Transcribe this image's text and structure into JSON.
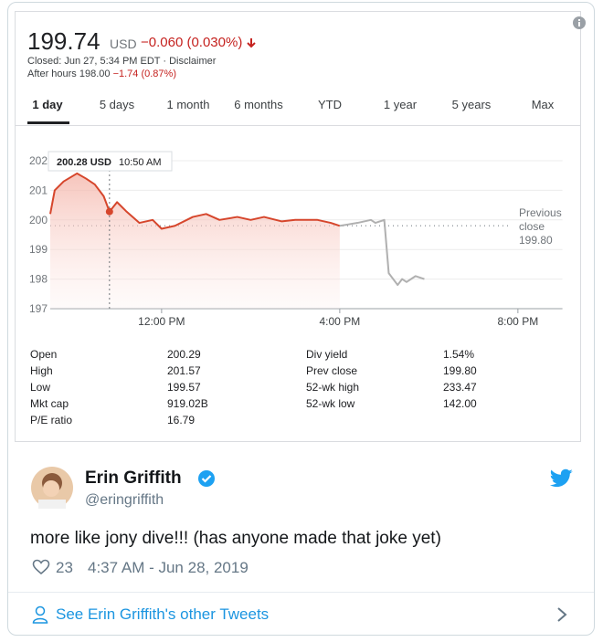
{
  "stock": {
    "price": "199.74",
    "currency": "USD",
    "change": "−0.060 (0.030%)",
    "closed": "Closed: Jun 27, 5:34 PM EDT · Disclaimer",
    "after_hours": "After hours 198.00",
    "after_hours_change": "−1.74 (0.87%)",
    "tabs": [
      "1 day",
      "5 days",
      "1 month",
      "6 months",
      "YTD",
      "1 year",
      "5 years",
      "Max"
    ],
    "stats_left": [
      [
        "Open",
        "200.29"
      ],
      [
        "High",
        "201.57"
      ],
      [
        "Low",
        "199.57"
      ],
      [
        "Mkt cap",
        "919.02B"
      ],
      [
        "P/E ratio",
        "16.79"
      ]
    ],
    "stats_right": [
      [
        "Div yield",
        "1.54%"
      ],
      [
        "Prev close",
        "199.80"
      ],
      [
        "52-wk high",
        "233.47"
      ],
      [
        "52-wk low",
        "142.00"
      ]
    ]
  },
  "chart_data": {
    "type": "line",
    "x": [
      9.5,
      9.6,
      9.8,
      10.1,
      10.3,
      10.5,
      10.7,
      10.83,
      11.0,
      11.2,
      11.5,
      11.8,
      12.0,
      12.3,
      12.7,
      13.0,
      13.3,
      13.7,
      14.0,
      14.3,
      14.7,
      15.0,
      15.5,
      15.8,
      16.0,
      16.4,
      16.7,
      16.8,
      17.0,
      17.1,
      17.3,
      17.4,
      17.5,
      17.7,
      17.9
    ],
    "series": [
      {
        "color": "#d6462c",
        "values": [
          200.2,
          201.0,
          201.3,
          201.57,
          201.4,
          201.2,
          200.8,
          200.28,
          200.6,
          200.3,
          199.9,
          200.0,
          199.7,
          199.8,
          200.1,
          200.2,
          200.0,
          200.1,
          200.0,
          200.1,
          199.95,
          200.0,
          200.0,
          199.9,
          199.8,
          null,
          null,
          null,
          null,
          null,
          null,
          null,
          null,
          null,
          null
        ]
      },
      {
        "color": "#b0b0b0",
        "values": [
          null,
          null,
          null,
          null,
          null,
          null,
          null,
          null,
          null,
          null,
          null,
          null,
          null,
          null,
          null,
          null,
          null,
          null,
          null,
          null,
          null,
          null,
          null,
          null,
          199.8,
          199.9,
          200.0,
          199.9,
          200.0,
          198.2,
          197.8,
          198.0,
          197.9,
          198.1,
          198.0
        ]
      }
    ],
    "xlim": [
      9.5,
      21.0
    ],
    "xticks": [
      {
        "value": 12,
        "label": "12:00 PM"
      },
      {
        "value": 16,
        "label": "4:00 PM"
      },
      {
        "value": 20,
        "label": "8:00 PM"
      }
    ],
    "ylim": [
      197,
      202.5
    ],
    "yticks": [
      197,
      198,
      199,
      200,
      201,
      202
    ],
    "grid": true,
    "reference_line": {
      "value": 199.8,
      "label": "199.80",
      "text": "Previous close"
    },
    "tooltip": {
      "value": 200.28,
      "label": "200.28 USD",
      "time": "10:50 AM"
    }
  },
  "tweet": {
    "name": "Erin Griffith",
    "handle": "@eringriffith",
    "text": "more like jony dive!!! (has anyone made that joke yet)",
    "likes": "23",
    "time": "4:37 AM - Jun 28, 2019",
    "footer": "See Erin Griffith's other Tweets"
  }
}
